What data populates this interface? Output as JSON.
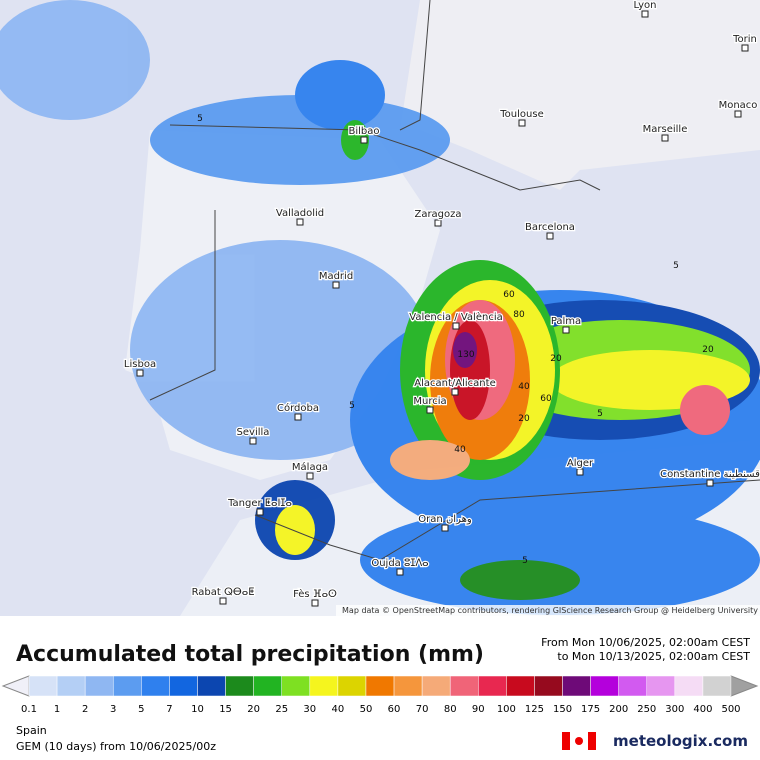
{
  "map": {
    "cities": [
      "Lyon",
      "Torin",
      "Monaco",
      "Toulouse",
      "Marseille",
      "Bilbao",
      "Valladolid",
      "Zaragoza",
      "Barcelona",
      "Madrid",
      "Valencia / València",
      "Palma",
      "Lisboa",
      "Alacant/Alicante",
      "Murcia",
      "Córdoba",
      "Sevilla",
      "Málaga",
      "Alger",
      "Constantine قسنطينة",
      "Tanger ⵟⴰⵏⵊⴰ",
      "Oran وهران",
      "Oujda ⵓⵊⴷⴰ",
      "Rabat ⵕⴱⴰⵟ",
      "Fès ⴼⴰⵙ"
    ],
    "contours": [
      "5",
      "5",
      "60",
      "80",
      "130",
      "20",
      "40",
      "60",
      "20",
      "40",
      "5",
      "5",
      "20",
      "5"
    ],
    "attribution": "Map data © OpenStreetMap contributors, rendering GIScience Research Group @ Heidelberg University"
  },
  "footer": {
    "title": "Accumulated total precipitation (mm)",
    "from": "From Mon 10/06/2025, 02:00am CEST",
    "to": "to Mon 10/13/2025, 02:00am CEST",
    "scale": {
      "values": [
        0.1,
        1,
        2,
        3,
        5,
        7,
        10,
        15,
        20,
        25,
        30,
        40,
        50,
        60,
        70,
        80,
        90,
        100,
        125,
        150,
        175,
        200,
        250,
        300,
        400,
        500
      ],
      "colors": [
        "#d6e2f7",
        "#b4cff5",
        "#8fb7f2",
        "#5c9cf0",
        "#2f80ee",
        "#1266e0",
        "#0c46b0",
        "#1c8a1c",
        "#22b422",
        "#7ee022",
        "#f5f51e",
        "#dcd400",
        "#f07800",
        "#f5963c",
        "#f5aa78",
        "#f06478",
        "#e82850",
        "#c80a1e",
        "#960a1e",
        "#6e0a78",
        "#b400dc",
        "#d25af0",
        "#e696f0",
        "#f5dcf5",
        "#d2d2d2"
      ]
    },
    "region": "Spain",
    "model": "GEM (10 days) from 10/06/2025/00z",
    "brand": "meteologix.com"
  }
}
